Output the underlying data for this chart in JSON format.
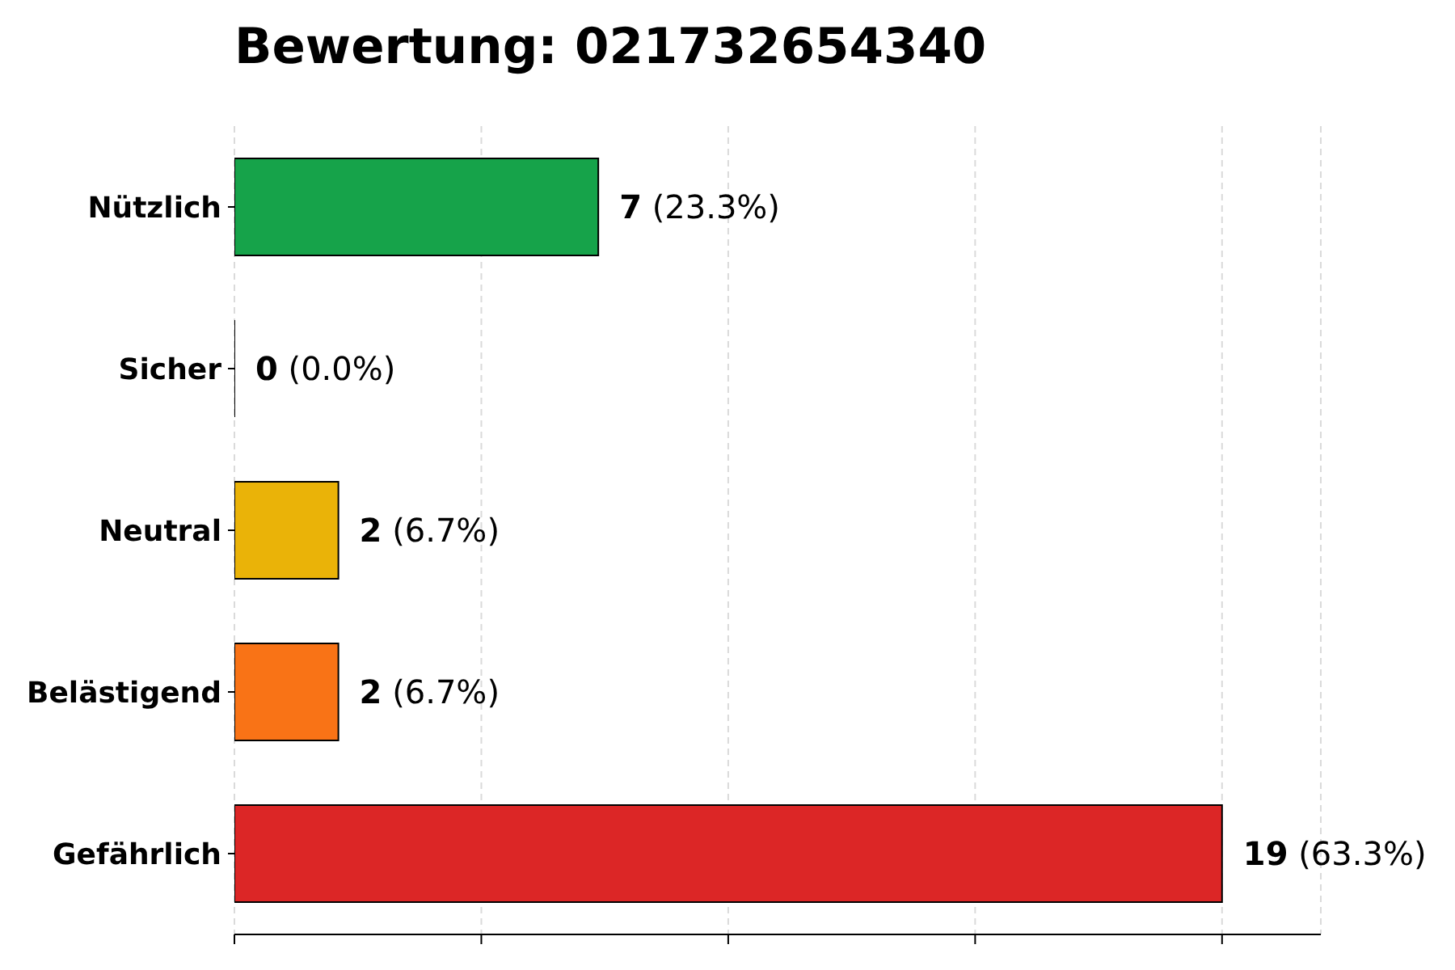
{
  "chart_data": {
    "type": "bar",
    "orientation": "horizontal",
    "title": "Bewertung: 021732654340",
    "categories": [
      "Nützlich",
      "Sicher",
      "Neutral",
      "Belästigend",
      "Gefährlich"
    ],
    "values": [
      7,
      0,
      2,
      2,
      19
    ],
    "colors": [
      "#16a34a",
      "#000000",
      "#eab308",
      "#f97316",
      "#dc2626"
    ],
    "value_labels": [
      "7 (23.3%)",
      "0 (0.0%)",
      "2 (6.7%)",
      "2 (6.7%)",
      "19 (63.3%)"
    ],
    "xlim": [
      0,
      20.9
    ],
    "xticks": [
      {
        "value": 0,
        "label": null
      },
      {
        "value": 4.75,
        "label": null
      },
      {
        "value": 9.5,
        "label": null
      },
      {
        "value": 14.25,
        "label": null
      },
      {
        "value": 19,
        "label": null
      }
    ],
    "grid": "x",
    "tick_labels": "y"
  }
}
